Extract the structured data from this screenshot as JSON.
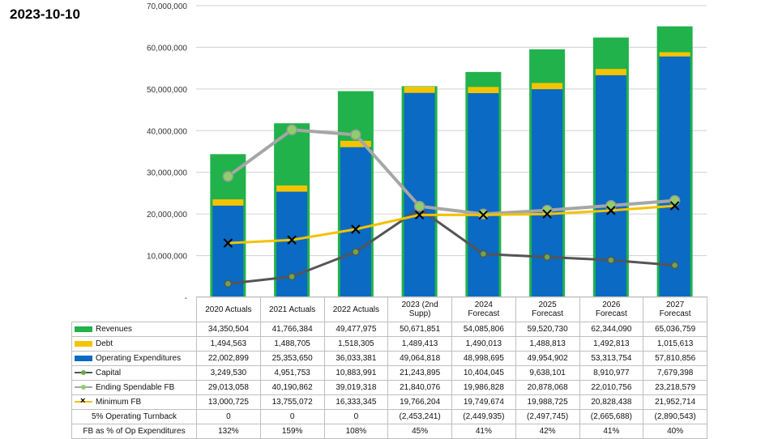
{
  "date": "2023-10-10",
  "colors": {
    "revenues": "#21b24b",
    "debt": "#f5c400",
    "opex": "#0a6ac4",
    "capital": "#555555",
    "ending_fb": "#a6a6a6",
    "ending_fb_marker": "#8fcf6a",
    "minimum_fb": "#f2c200"
  },
  "chart_data": {
    "type": "bar",
    "title": "",
    "xlabel": "",
    "ylabel": "",
    "ylim": [
      0,
      70000000
    ],
    "y_ticks": [
      0,
      10000000,
      20000000,
      30000000,
      40000000,
      50000000,
      60000000,
      70000000
    ],
    "y_tick_labels": [
      "-",
      "10,000,000",
      "20,000,000",
      "30,000,000",
      "40,000,000",
      "50,000,000",
      "60,000,000",
      "70,000,000"
    ],
    "categories": [
      "2020 Actuals",
      "2021 Actuals",
      "2022 Actuals",
      "2023 (2nd Supp)",
      "2024 Forecast",
      "2025 Forecast",
      "2026 Forecast",
      "2027 Forecast"
    ],
    "bar_series": [
      {
        "name": "Revenues",
        "values": [
          34350504,
          41766384,
          49477975,
          50671851,
          54085806,
          59520730,
          62344090,
          65036759
        ]
      },
      {
        "name": "Debt",
        "values": [
          1494563,
          1488705,
          1518305,
          1489413,
          1490013,
          1488813,
          1492813,
          1015613
        ]
      },
      {
        "name": "Operating Expenditures",
        "values": [
          22002899,
          25353650,
          36033381,
          49064818,
          48998695,
          49954902,
          53313754,
          57810856
        ]
      }
    ],
    "line_series": [
      {
        "name": "Capital",
        "values": [
          3249530,
          4951753,
          10883991,
          21243895,
          10404045,
          9638101,
          8910977,
          7679398
        ]
      },
      {
        "name": "Ending Spendable FB",
        "values": [
          29013058,
          40190862,
          39019318,
          21840076,
          19986828,
          20878068,
          22010756,
          23218579
        ]
      },
      {
        "name": "Minimum FB",
        "values": [
          13000725,
          13755072,
          16333345,
          19766204,
          19749674,
          19988725,
          20828438,
          21952714
        ]
      }
    ]
  },
  "table": {
    "headers": [
      [
        "2020 Actuals"
      ],
      [
        "2021 Actuals"
      ],
      [
        "2022 Actuals"
      ],
      [
        "2023 (2nd",
        "Supp)"
      ],
      [
        "2024",
        "Forecast"
      ],
      [
        "2025",
        "Forecast"
      ],
      [
        "2026",
        "Forecast"
      ],
      [
        "2027",
        "Forecast"
      ]
    ],
    "rows": [
      {
        "label": "Revenues",
        "swatch": "bar",
        "color": "#21b24b",
        "cells": [
          "34,350,504",
          "41,766,384",
          "49,477,975",
          "50,671,851",
          "54,085,806",
          "59,520,730",
          "62,344,090",
          "65,036,759"
        ]
      },
      {
        "label": "Debt",
        "swatch": "bar",
        "color": "#f5c400",
        "cells": [
          "1,494,563",
          "1,488,705",
          "1,518,305",
          "1,489,413",
          "1,490,013",
          "1,488,813",
          "1,492,813",
          "1,015,613"
        ]
      },
      {
        "label": "Operating Expenditures",
        "swatch": "bar",
        "color": "#0a6ac4",
        "cells": [
          "22,002,899",
          "25,353,650",
          "36,033,381",
          "49,064,818",
          "48,998,695",
          "49,954,902",
          "53,313,754",
          "57,810,856"
        ]
      },
      {
        "label": "Capital",
        "swatch": "line-dot",
        "color": "#555555",
        "cells": [
          "3,249,530",
          "4,951,753",
          "10,883,991",
          "21,243,895",
          "10,404,045",
          "9,638,101",
          "8,910,977",
          "7,679,398"
        ]
      },
      {
        "label": "Ending Spendable FB",
        "swatch": "line-dot",
        "color": "#a6a6a6",
        "cells": [
          "29,013,058",
          "40,190,862",
          "39,019,318",
          "21,840,076",
          "19,986,828",
          "20,878,068",
          "22,010,756",
          "23,218,579"
        ]
      },
      {
        "label": "Minimum FB",
        "swatch": "line-x",
        "color": "#f2c200",
        "cells": [
          "13,000,725",
          "13,755,072",
          "16,333,345",
          "19,766,204",
          "19,749,674",
          "19,988,725",
          "20,828,438",
          "21,952,714"
        ]
      },
      {
        "label": "5% Operating Turnback",
        "swatch": "none",
        "color": "",
        "cells": [
          "0",
          "0",
          "0",
          "(2,453,241)",
          "(2,449,935)",
          "(2,497,745)",
          "(2,665,688)",
          "(2,890,543)"
        ]
      },
      {
        "label": "FB as % of Op Expenditures",
        "swatch": "none",
        "color": "",
        "cells": [
          "132%",
          "159%",
          "108%",
          "45%",
          "41%",
          "42%",
          "41%",
          "40%"
        ]
      }
    ]
  }
}
